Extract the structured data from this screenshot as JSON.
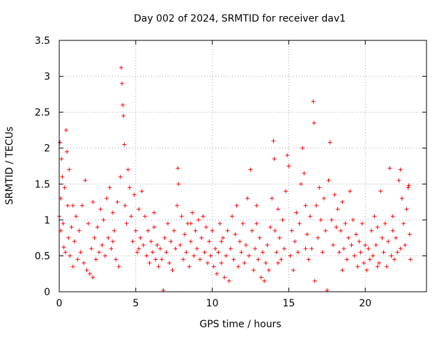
{
  "chart_data": {
    "type": "scatter",
    "title": "Day 002 of 2024, SRMTID for receiver dav1",
    "xlabel": "GPS time / hours",
    "ylabel": "SRMTID / TECUs",
    "xlim": [
      0,
      24
    ],
    "ylim": [
      0,
      3.5
    ],
    "x_ticks": [
      0,
      5,
      10,
      15,
      20
    ],
    "x_tick_labels": [
      "0",
      "5",
      "10",
      "15",
      "20"
    ],
    "y_ticks": [
      0,
      0.5,
      1,
      1.5,
      2,
      2.5,
      3,
      3.5
    ],
    "y_tick_labels": [
      "0",
      "0.5",
      "1",
      "1.5",
      "2",
      "2.5",
      "3",
      "3.5"
    ],
    "grid": true,
    "marker": "+",
    "series": [
      {
        "name": "SRMTID",
        "color": "#ff0000",
        "points": [
          [
            0.0,
            1.05
          ],
          [
            0.05,
            2.08
          ],
          [
            0.1,
            1.3
          ],
          [
            0.15,
            1.85
          ],
          [
            0.2,
            1.6
          ],
          [
            0.25,
            0.95
          ],
          [
            0.3,
            0.62
          ],
          [
            0.35,
            1.45
          ],
          [
            0.4,
            0.55
          ],
          [
            0.45,
            2.25
          ],
          [
            0.5,
            1.95
          ],
          [
            0.55,
            1.2
          ],
          [
            0.6,
            0.75
          ],
          [
            0.65,
            1.7
          ],
          [
            0.7,
            0.5
          ],
          [
            0.8,
            0.9
          ],
          [
            0.9,
            0.35
          ],
          [
            1.0,
            0.7
          ],
          [
            1.1,
            1.05
          ],
          [
            1.2,
            0.45
          ],
          [
            1.3,
            0.85
          ],
          [
            1.4,
            0.55
          ],
          [
            1.5,
            1.2
          ],
          [
            1.6,
            0.4
          ],
          [
            1.7,
            1.55
          ],
          [
            1.8,
            0.3
          ],
          [
            1.9,
            0.95
          ],
          [
            2.0,
            0.25
          ],
          [
            2.1,
            0.6
          ],
          [
            2.2,
            0.2
          ],
          [
            2.3,
            0.75
          ],
          [
            2.4,
            0.45
          ],
          [
            2.5,
            0.9
          ],
          [
            2.6,
            0.55
          ],
          [
            2.7,
            1.15
          ],
          [
            2.8,
            0.65
          ],
          [
            2.9,
            1.0
          ],
          [
            3.0,
            0.5
          ],
          [
            3.1,
            1.3
          ],
          [
            3.2,
            0.75
          ],
          [
            3.3,
            1.45
          ],
          [
            3.4,
            0.6
          ],
          [
            3.5,
            1.1
          ],
          [
            3.6,
            0.85
          ],
          [
            3.7,
            0.45
          ],
          [
            3.8,
            1.25
          ],
          [
            3.9,
            0.35
          ],
          [
            4.0,
            1.6
          ],
          [
            4.05,
            3.12
          ],
          [
            4.1,
            2.9
          ],
          [
            4.15,
            2.6
          ],
          [
            4.2,
            2.45
          ],
          [
            4.25,
            2.05
          ],
          [
            4.3,
            1.2
          ],
          [
            4.4,
            0.95
          ],
          [
            4.5,
            1.7
          ],
          [
            4.6,
            1.45
          ],
          [
            4.7,
            1.05
          ],
          [
            4.8,
            0.7
          ],
          [
            4.9,
            1.35
          ],
          [
            5.0,
            0.85
          ],
          [
            5.1,
            0.55
          ],
          [
            5.2,
            1.15
          ],
          [
            5.3,
            0.75
          ],
          [
            5.4,
            1.4
          ],
          [
            5.5,
            0.65
          ],
          [
            5.6,
            1.05
          ],
          [
            5.7,
            0.5
          ],
          [
            5.8,
            0.85
          ],
          [
            5.9,
            0.4
          ],
          [
            6.0,
            0.7
          ],
          [
            6.1,
            0.55
          ],
          [
            6.2,
            0.9
          ],
          [
            6.3,
            0.45
          ],
          [
            6.4,
            0.65
          ],
          [
            6.5,
            0.35
          ],
          [
            6.6,
            0.6
          ],
          [
            6.7,
            0.45
          ],
          [
            6.8,
            0.02
          ],
          [
            6.9,
            0.75
          ],
          [
            7.0,
            0.55
          ],
          [
            7.1,
            0.95
          ],
          [
            7.2,
            0.4
          ],
          [
            7.3,
            0.7
          ],
          [
            7.4,
            0.3
          ],
          [
            7.5,
            0.85
          ],
          [
            7.6,
            0.6
          ],
          [
            7.7,
            1.2
          ],
          [
            7.75,
            1.72
          ],
          [
            7.8,
            1.5
          ],
          [
            7.9,
            0.65
          ],
          [
            8.0,
            1.05
          ],
          [
            8.1,
            0.45
          ],
          [
            8.2,
            0.8
          ],
          [
            8.3,
            0.55
          ],
          [
            8.4,
            0.95
          ],
          [
            8.5,
            0.35
          ],
          [
            8.6,
            0.7
          ],
          [
            8.7,
            1.1
          ],
          [
            8.8,
            0.5
          ],
          [
            8.9,
            0.85
          ],
          [
            9.0,
            0.6
          ],
          [
            9.1,
            1.0
          ],
          [
            9.2,
            0.45
          ],
          [
            9.3,
            0.75
          ],
          [
            9.4,
            1.05
          ],
          [
            9.5,
            0.55
          ],
          [
            9.6,
            0.9
          ],
          [
            9.7,
            0.4
          ],
          [
            9.8,
            0.7
          ],
          [
            9.9,
            0.5
          ],
          [
            10.0,
            0.85
          ],
          [
            10.1,
            0.35
          ],
          [
            10.2,
            0.6
          ],
          [
            10.3,
            0.25
          ],
          [
            10.4,
            0.55
          ],
          [
            10.5,
            0.95
          ],
          [
            10.6,
            0.4
          ],
          [
            10.7,
            0.75
          ],
          [
            10.8,
            0.2
          ],
          [
            10.9,
            0.5
          ],
          [
            11.0,
            0.85
          ],
          [
            11.1,
            0.15
          ],
          [
            11.2,
            0.6
          ],
          [
            11.3,
            1.05
          ],
          [
            11.4,
            0.45
          ],
          [
            11.5,
            0.8
          ],
          [
            11.6,
            1.2
          ],
          [
            11.7,
            0.35
          ],
          [
            11.8,
            0.7
          ],
          [
            11.9,
            0.55
          ],
          [
            12.0,
            0.95
          ],
          [
            12.1,
            0.4
          ],
          [
            12.2,
            0.65
          ],
          [
            12.3,
            1.3
          ],
          [
            12.4,
            0.5
          ],
          [
            12.5,
            1.7
          ],
          [
            12.6,
            0.85
          ],
          [
            12.7,
            0.3
          ],
          [
            12.8,
            0.6
          ],
          [
            12.9,
            0.95
          ],
          [
            13.0,
            0.45
          ],
          [
            13.1,
            0.75
          ],
          [
            13.2,
            0.2
          ],
          [
            13.3,
            0.55
          ],
          [
            13.4,
            0.15
          ],
          [
            13.5,
            0.4
          ],
          [
            13.6,
            0.65
          ],
          [
            13.7,
            0.3
          ],
          [
            13.8,
            0.9
          ],
          [
            13.9,
            1.3
          ],
          [
            14.0,
            2.1
          ],
          [
            14.05,
            1.85
          ],
          [
            14.1,
            0.85
          ],
          [
            14.2,
            0.55
          ],
          [
            14.3,
            1.15
          ],
          [
            14.4,
            0.75
          ],
          [
            14.5,
            0.45
          ],
          [
            14.6,
            1.0
          ],
          [
            14.7,
            0.6
          ],
          [
            14.8,
            1.4
          ],
          [
            14.9,
            1.9
          ],
          [
            15.0,
            1.75
          ],
          [
            15.1,
            0.5
          ],
          [
            15.2,
            0.85
          ],
          [
            15.3,
            0.3
          ],
          [
            15.4,
            0.7
          ],
          [
            15.5,
            1.1
          ],
          [
            15.6,
            0.55
          ],
          [
            15.7,
            0.95
          ],
          [
            15.8,
            1.5
          ],
          [
            15.9,
            2.0
          ],
          [
            16.0,
            1.65
          ],
          [
            16.1,
            1.2
          ],
          [
            16.2,
            0.8
          ],
          [
            16.3,
            0.45
          ],
          [
            16.4,
            1.05
          ],
          [
            16.5,
            0.6
          ],
          [
            16.6,
            2.65
          ],
          [
            16.65,
            2.35
          ],
          [
            16.7,
            0.15
          ],
          [
            16.8,
            1.2
          ],
          [
            16.9,
            0.75
          ],
          [
            17.0,
            1.45
          ],
          [
            17.1,
            1.0
          ],
          [
            17.2,
            0.55
          ],
          [
            17.3,
            1.3
          ],
          [
            17.4,
            0.85
          ],
          [
            17.5,
            0.02
          ],
          [
            17.6,
            1.55
          ],
          [
            17.7,
            2.08
          ],
          [
            17.8,
            1.0
          ],
          [
            17.9,
            0.65
          ],
          [
            18.0,
            1.35
          ],
          [
            18.1,
            0.9
          ],
          [
            18.2,
            1.15
          ],
          [
            18.3,
            0.55
          ],
          [
            18.4,
            0.85
          ],
          [
            18.5,
            1.25
          ],
          [
            18.6,
            0.6
          ],
          [
            18.7,
            0.95
          ],
          [
            18.8,
            0.45
          ],
          [
            18.9,
            0.75
          ],
          [
            19.0,
            1.4
          ],
          [
            19.1,
            0.65
          ],
          [
            19.2,
            1.0
          ],
          [
            19.3,
            0.5
          ],
          [
            19.4,
            0.8
          ],
          [
            19.5,
            0.35
          ],
          [
            19.6,
            0.7
          ],
          [
            19.7,
            0.55
          ],
          [
            19.8,
            0.95
          ],
          [
            19.9,
            0.4
          ],
          [
            20.0,
            0.65
          ],
          [
            20.1,
            0.3
          ],
          [
            20.2,
            0.6
          ],
          [
            20.3,
            0.45
          ],
          [
            20.4,
            0.85
          ],
          [
            20.5,
            0.5
          ],
          [
            20.6,
            1.05
          ],
          [
            20.7,
            0.65
          ],
          [
            20.8,
            0.9
          ],
          [
            20.9,
            0.4
          ],
          [
            21.0,
            1.4
          ],
          [
            21.1,
            0.75
          ],
          [
            21.2,
            0.55
          ],
          [
            21.3,
            0.95
          ],
          [
            21.4,
            0.35
          ],
          [
            21.5,
            0.7
          ],
          [
            21.6,
            1.72
          ],
          [
            21.7,
            0.5
          ],
          [
            21.8,
            0.85
          ],
          [
            21.9,
            0.45
          ],
          [
            22.0,
            0.75
          ],
          [
            22.1,
            0.55
          ],
          [
            22.2,
            1.55
          ],
          [
            22.3,
            1.7
          ],
          [
            22.4,
            1.3
          ],
          [
            22.5,
            0.95
          ],
          [
            22.6,
            0.65
          ],
          [
            22.7,
            1.15
          ],
          [
            22.8,
            1.45
          ],
          [
            22.85,
            1.48
          ],
          [
            22.9,
            0.8
          ],
          [
            22.95,
            0.45
          ],
          [
            0.1,
            0.85
          ],
          [
            0.9,
            1.2
          ],
          [
            2.2,
            1.25
          ],
          [
            3.5,
            0.7
          ],
          [
            5.2,
            0.6
          ],
          [
            6.2,
            1.1
          ],
          [
            8.6,
            0.95
          ],
          [
            10.6,
            0.7
          ],
          [
            12.9,
            1.2
          ],
          [
            14.3,
            0.4
          ],
          [
            16.1,
            0.6
          ],
          [
            18.5,
            0.3
          ],
          [
            20.8,
            0.35
          ],
          [
            21.8,
            1.05
          ],
          [
            22.3,
            0.6
          ]
        ]
      }
    ]
  }
}
